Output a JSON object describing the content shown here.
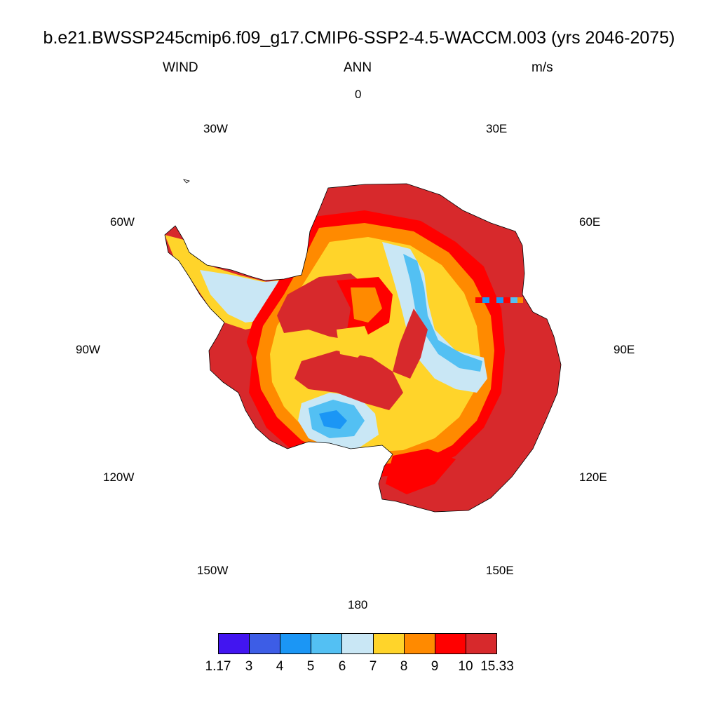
{
  "header": {
    "title": "b.e21.BWSSP245cmip6.f09_g17.CMIP6-SSP2-4.5-WACCM.003 (yrs 2046-2075)",
    "variable": "WIND",
    "season": "ANN",
    "units": "m/s"
  },
  "longitude_labels": {
    "lon_0": "0",
    "lon_30e": "30E",
    "lon_60e": "60E",
    "lon_90e": "90E",
    "lon_120e": "120E",
    "lon_150e": "150E",
    "lon_180": "180",
    "lon_150w": "150W",
    "lon_120w": "120W",
    "lon_90w": "90W",
    "lon_60w": "60W",
    "lon_30w": "30W"
  },
  "colorbar": {
    "colors": [
      "#4215f0",
      "#3d5de6",
      "#1b96f5",
      "#53c0f3",
      "#c9e7f5",
      "#ffd42a",
      "#ff8a00",
      "#ff0000",
      "#d7292c"
    ],
    "labels": [
      "1.17",
      "3",
      "4",
      "5",
      "6",
      "7",
      "8",
      "9",
      "10",
      "15.33"
    ]
  },
  "map": {
    "projection": "south polar stereographic",
    "region": "Antarctica",
    "field_description_levels": [
      "6-7",
      "7-8",
      "8-9",
      "9-10",
      "10-15.33"
    ]
  }
}
